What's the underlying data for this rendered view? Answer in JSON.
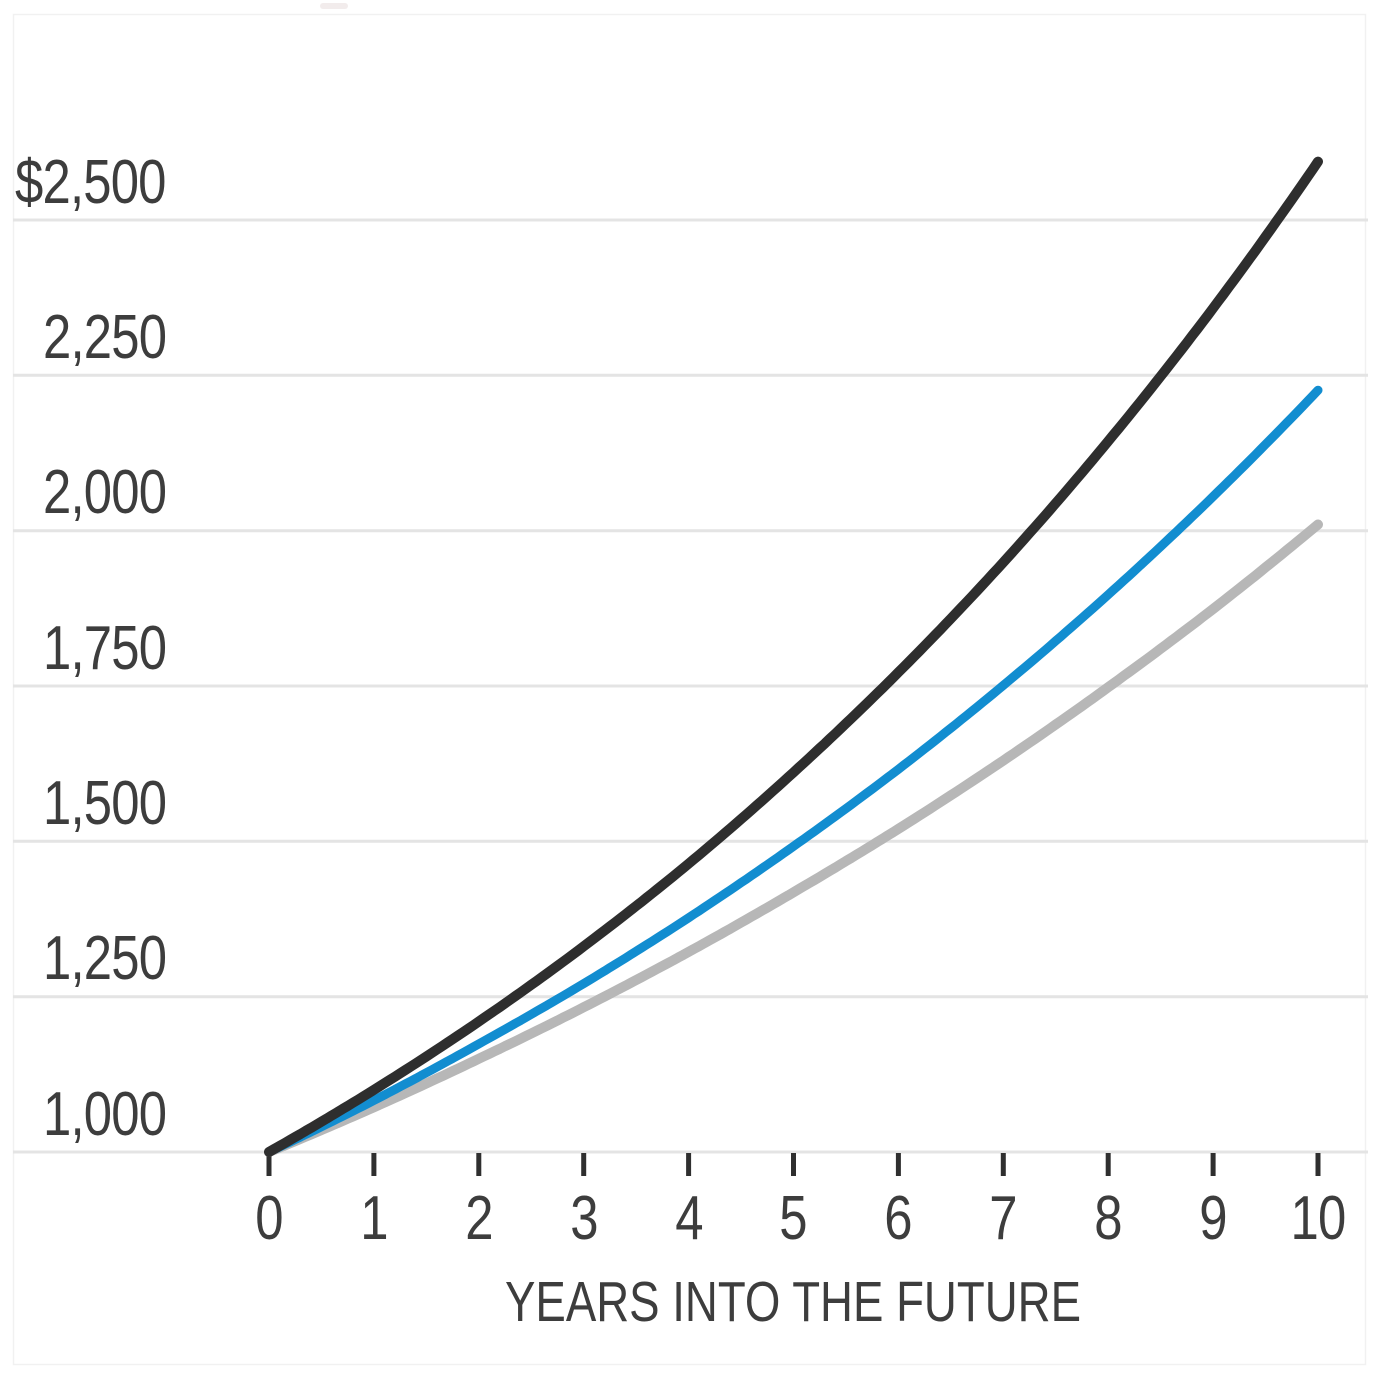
{
  "chart_data": {
    "type": "line",
    "title": "",
    "xlabel": "YEARS INTO THE FUTURE",
    "ylabel": "",
    "currency_prefix": "$",
    "x": [
      0,
      1,
      2,
      3,
      4,
      5,
      6,
      7,
      8,
      9,
      10
    ],
    "x_tick_labels": [
      "0",
      "1",
      "2",
      "3",
      "4",
      "5",
      "6",
      "7",
      "8",
      "9",
      "10"
    ],
    "y_tick_labels": [
      "$2,500",
      "2,250",
      "2,000",
      "1,750",
      "1,500",
      "1,250",
      "1,000"
    ],
    "y_tick_values": [
      2500,
      2250,
      2000,
      1750,
      1500,
      1250,
      1000
    ],
    "xlim": [
      0,
      10
    ],
    "ylim": [
      1000,
      2650
    ],
    "start_value": 1000,
    "grid": "horizontal-only",
    "legend": "none",
    "series": [
      {
        "name": "gray-line",
        "color": "#b7b7b7",
        "values": [
          1000,
          1072,
          1150,
          1233,
          1322,
          1418,
          1520,
          1630,
          1748,
          1874,
          2010
        ]
      },
      {
        "name": "blue-line",
        "color": "#128dd0",
        "values": [
          1000,
          1083,
          1174,
          1271,
          1377,
          1492,
          1616,
          1751,
          1897,
          2055,
          2226
        ]
      },
      {
        "name": "black-line",
        "color": "#2e2e2e",
        "values": [
          1000,
          1100,
          1210,
          1331,
          1464,
          1611,
          1772,
          1949,
          2144,
          2358,
          2594
        ]
      }
    ]
  },
  "style": {
    "background": "#ffffff",
    "gridline_color": "#e4e4e4",
    "frame_color": "#f1f1f1",
    "tick_color": "#2f2f2f",
    "text_color": "#3d3d3d",
    "artifact_color": "#f2ecec"
  }
}
